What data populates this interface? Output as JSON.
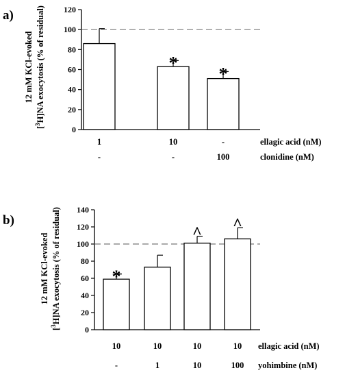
{
  "chart_data": [
    {
      "type": "bar",
      "panel_label": "a)",
      "ylabel_line1": "12 mM KCl-evoked",
      "ylabel_sup": "3",
      "ylabel_line2_pre": "[",
      "ylabel_line2_post": "H]NA exocytosis (% of residual)",
      "ylim": [
        0,
        120
      ],
      "yticks": [
        "0",
        "20",
        "40",
        "60",
        "80",
        "100",
        "120"
      ],
      "reference_line": 100,
      "values": [
        86,
        63,
        51
      ],
      "errors": [
        15,
        6,
        7
      ],
      "significance": [
        "",
        "*",
        "*"
      ],
      "condition_rows": [
        {
          "label": "ellagic acid (nM)",
          "cells": [
            "1",
            "10",
            "-"
          ]
        },
        {
          "label": "clonidine (nM)",
          "cells": [
            "-",
            "-",
            "100"
          ]
        }
      ]
    },
    {
      "type": "bar",
      "panel_label": "b)",
      "ylabel_line1": "12 mM KCl-evoked",
      "ylabel_sup": "3",
      "ylabel_line2_pre": "[",
      "ylabel_line2_post": "H]NA exocytosis (% of residual)",
      "ylim": [
        0,
        140
      ],
      "yticks": [
        "0",
        "20",
        "40",
        "60",
        "80",
        "100",
        "120",
        "140"
      ],
      "reference_line": 100,
      "values": [
        59,
        73,
        101,
        106
      ],
      "errors": [
        6,
        14,
        8,
        13
      ],
      "significance": [
        "*",
        "",
        "^",
        "^"
      ],
      "condition_rows": [
        {
          "label": "ellagic acid (nM)",
          "cells": [
            "10",
            "10",
            "10",
            "10"
          ]
        },
        {
          "label": "yohimbine (nM)",
          "cells": [
            "-",
            "1",
            "10",
            "100"
          ]
        }
      ]
    }
  ]
}
